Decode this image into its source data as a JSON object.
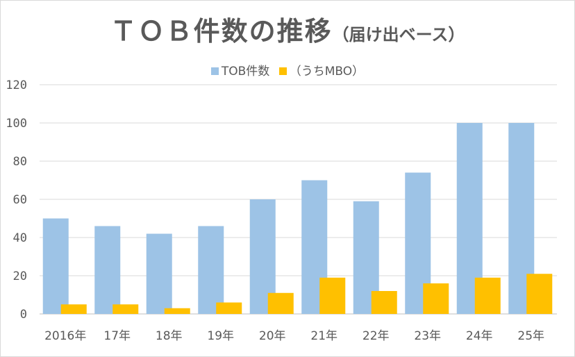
{
  "chart_data": {
    "type": "bar",
    "title": "ＴＯＢ件数の推移",
    "subtitle": "（届け出ベース）",
    "categories": [
      "2016年",
      "17年",
      "18年",
      "19年",
      "20年",
      "21年",
      "22年",
      "23年",
      "24年",
      "25年"
    ],
    "series": [
      {
        "name": "TOB件数",
        "color": "#9dc3e6",
        "values": [
          50,
          46,
          42,
          46,
          60,
          70,
          59,
          74,
          100,
          100
        ]
      },
      {
        "name": "（うちMBO）",
        "color": "#ffc000",
        "values": [
          5,
          5,
          3,
          6,
          11,
          19,
          12,
          16,
          19,
          21
        ]
      }
    ],
    "ylim": [
      0,
      120
    ],
    "yticks": [
      0,
      20,
      40,
      60,
      80,
      100,
      120
    ],
    "grid": true,
    "legend_position": "top"
  }
}
